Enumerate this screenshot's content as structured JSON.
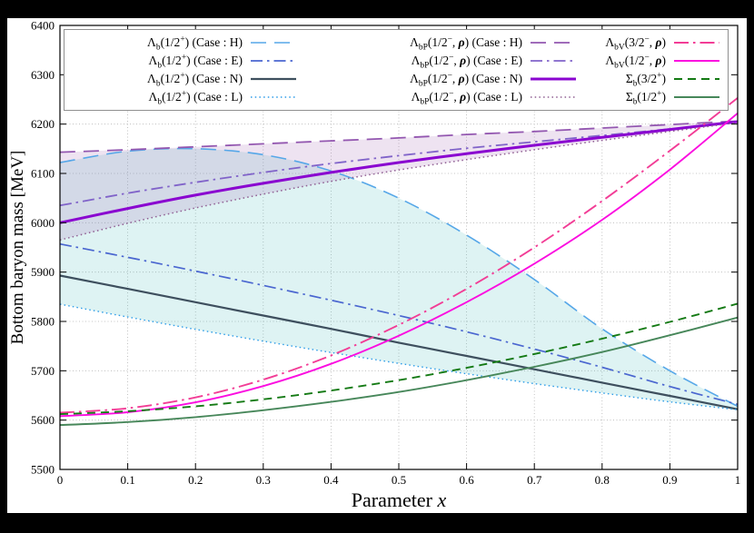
{
  "frame": {
    "background": "#000000",
    "plot_background": "#ffffff"
  },
  "chart_data": {
    "type": "line",
    "title": "",
    "xlabel_main": "Parameter",
    "xlabel_var": "x",
    "ylabel": "Bottom baryon mass [MeV]",
    "xlim": [
      0,
      1
    ],
    "ylim": [
      5500,
      6400
    ],
    "grid": true,
    "legend_position": "top-inside",
    "x_ticks": [
      0,
      0.1,
      0.2,
      0.3,
      0.4,
      0.5,
      0.6,
      0.7,
      0.8,
      0.9,
      1
    ],
    "x_tick_labels": [
      "0",
      "0.1",
      "0.2",
      "0.3",
      "0.4",
      "0.5",
      "0.6",
      "0.7",
      "0.8",
      "0.9",
      "1"
    ],
    "y_ticks": [
      5500,
      5600,
      5700,
      5800,
      5900,
      6000,
      6100,
      6200,
      6300,
      6400
    ],
    "y_tick_labels": [
      "5500",
      "5600",
      "5700",
      "5800",
      "5900",
      "6000",
      "6100",
      "6200",
      "6300",
      "6400"
    ],
    "x": [
      0,
      0.1,
      0.2,
      0.3,
      0.4,
      0.5,
      0.6,
      0.7,
      0.8,
      0.9,
      1.0
    ],
    "series": [
      {
        "id": "lb_H",
        "label": "Λ_{b}(1/2^{+}) (Case : H)",
        "color": "#56a7e8",
        "style": "longdash",
        "width": 1.6,
        "legend_col": 0,
        "values": [
          6122,
          6145,
          6150,
          6138,
          6105,
          6050,
          5975,
          5885,
          5785,
          5700,
          5628
        ]
      },
      {
        "id": "lb_E",
        "label": "Λ_{b}(1/2^{+}) (Case : E)",
        "color": "#4a66d0",
        "style": "dashdot",
        "width": 1.7,
        "legend_col": 0,
        "values": [
          5957,
          5930,
          5902,
          5873,
          5843,
          5812,
          5779,
          5744,
          5707,
          5668,
          5632
        ]
      },
      {
        "id": "lb_N",
        "label": "Λ_{b}(1/2^{+}) (Case : N)",
        "color": "#3e4f5e",
        "style": "solid",
        "width": 2.2,
        "legend_col": 0,
        "values": [
          5893,
          5866,
          5839,
          5812,
          5785,
          5757,
          5730,
          5703,
          5676,
          5649,
          5622
        ]
      },
      {
        "id": "lb_L",
        "label": "Λ_{b}(1/2^{+}) (Case : L)",
        "color": "#2d9ce8",
        "style": "dot",
        "width": 1.4,
        "legend_col": 0,
        "values": [
          5835,
          5809,
          5784,
          5760,
          5737,
          5715,
          5694,
          5674,
          5655,
          5637,
          5621
        ]
      },
      {
        "id": "lbp_H",
        "label": "Λ_{bP}(1/2^{−}, **ρ**) (Case : H)",
        "color": "#9357b0",
        "style": "longdash",
        "width": 1.8,
        "legend_col": 1,
        "values": [
          6143,
          6148,
          6154,
          6160,
          6166,
          6172,
          6179,
          6185,
          6192,
          6199,
          6206
        ]
      },
      {
        "id": "lbp_E",
        "label": "Λ_{bP}(1/2^{−}, **ρ**) (Case : E)",
        "color": "#8063c9",
        "style": "dashdot",
        "width": 1.8,
        "legend_col": 1,
        "values": [
          6035,
          6060,
          6082,
          6102,
          6120,
          6136,
          6151,
          6164,
          6177,
          6190,
          6204
        ]
      },
      {
        "id": "lbp_N",
        "label": "Λ_{bP}(1/2^{−}, **ρ**) (Case : N)",
        "color": "#8a05d0",
        "style": "solid",
        "width": 3.0,
        "legend_col": 1,
        "values": [
          6000,
          6029,
          6056,
          6080,
          6102,
          6122,
          6140,
          6157,
          6173,
          6189,
          6205
        ]
      },
      {
        "id": "lbp_L",
        "label": "Λ_{bP}(1/2^{−}, **ρ**) (Case : L)",
        "color": "#8f5e92",
        "style": "dot",
        "width": 1.5,
        "legend_col": 1,
        "values": [
          5965,
          5999,
          6030,
          6058,
          6084,
          6107,
          6128,
          6148,
          6167,
          6185,
          6203
        ]
      },
      {
        "id": "lbv32",
        "label": "Λ_{bV}(3/2^{−}, **ρ**)",
        "color": "#f23d96",
        "style": "dashdotlong",
        "width": 1.9,
        "legend_col": 2,
        "values": [
          5615,
          5624,
          5646,
          5682,
          5731,
          5793,
          5866,
          5950,
          6044,
          6146,
          6253
        ]
      },
      {
        "id": "lbv12",
        "label": "Λ_{bV}(1/2^{−}, **ρ**)",
        "color": "#fb0ce0",
        "style": "solid",
        "width": 1.9,
        "legend_col": 2,
        "values": [
          5608,
          5616,
          5636,
          5669,
          5714,
          5771,
          5839,
          5917,
          6006,
          6108,
          6222
        ]
      },
      {
        "id": "sb32",
        "label": "Σ_{b}(3/2^{+})",
        "color": "#147a14",
        "style": "dash",
        "width": 1.9,
        "legend_col": 2,
        "values": [
          5612,
          5618,
          5628,
          5642,
          5660,
          5681,
          5706,
          5734,
          5765,
          5799,
          5836
        ]
      },
      {
        "id": "sb12",
        "label": "Σ_{b}(1/2^{+})",
        "color": "#47875a",
        "style": "solid",
        "width": 1.9,
        "legend_col": 2,
        "values": [
          5590,
          5596,
          5606,
          5620,
          5637,
          5657,
          5681,
          5708,
          5738,
          5772,
          5808
        ]
      }
    ],
    "regions": [
      {
        "upper": "lb_H",
        "lower": "lb_L",
        "fill": "rgba(72,190,190,0.18)"
      },
      {
        "upper": "lbp_H",
        "lower": "lbp_L",
        "fill": "rgba(160,100,180,0.18)"
      }
    ]
  }
}
